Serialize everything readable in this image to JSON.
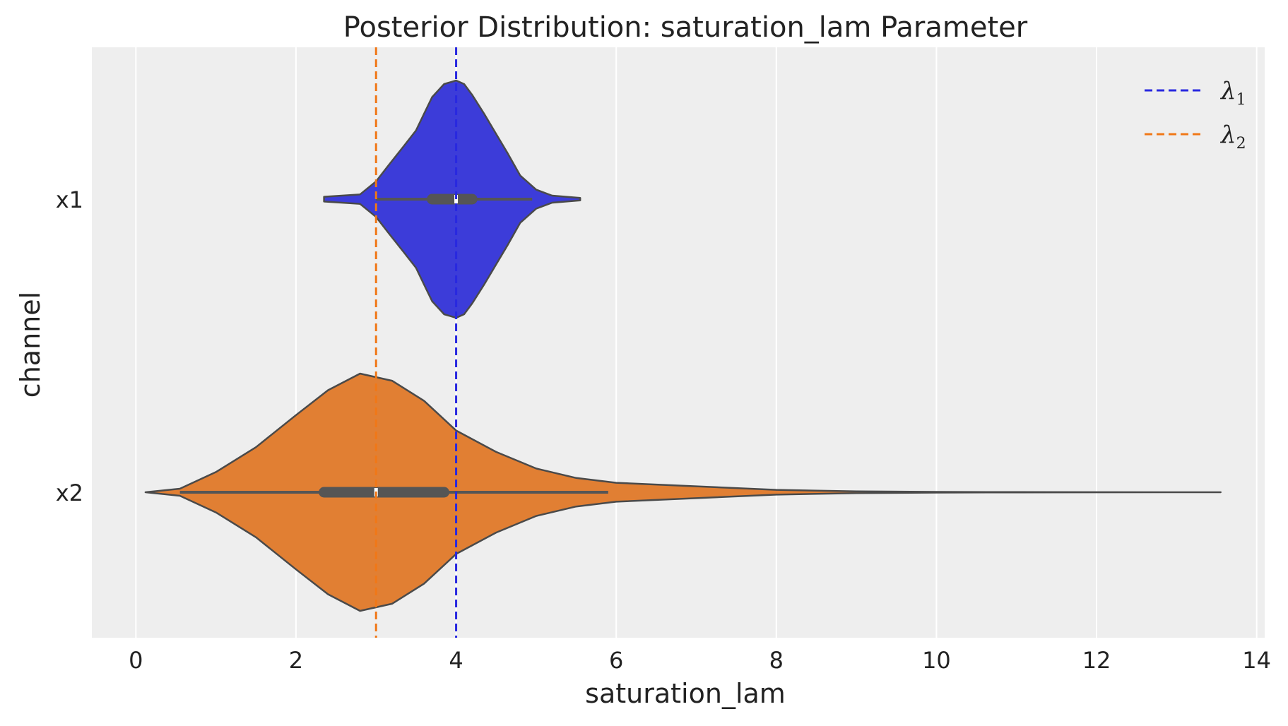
{
  "chart_data": {
    "type": "violin",
    "title": "Posterior Distribution: saturation_lam Parameter",
    "xlabel": "saturation_lam",
    "ylabel": "channel",
    "xlim": [
      -0.55,
      14.1
    ],
    "xticks": [
      0,
      2,
      4,
      6,
      8,
      10,
      12,
      14
    ],
    "grid": true,
    "categories": [
      "x1",
      "x2"
    ],
    "series": [
      {
        "name": "x1",
        "color": "#3c3cd9",
        "box": {
          "q1": 3.7,
          "median": 4.0,
          "q3": 4.2,
          "whisker_low": 3.0,
          "whisker_high": 4.95
        },
        "min": 2.35,
        "max": 5.55,
        "density": [
          [
            2.35,
            0.02
          ],
          [
            2.8,
            0.04
          ],
          [
            3.0,
            0.15
          ],
          [
            3.15,
            0.28
          ],
          [
            3.35,
            0.45
          ],
          [
            3.5,
            0.58
          ],
          [
            3.6,
            0.72
          ],
          [
            3.7,
            0.86
          ],
          [
            3.85,
            0.97
          ],
          [
            4.0,
            1.0
          ],
          [
            4.1,
            0.97
          ],
          [
            4.2,
            0.88
          ],
          [
            4.35,
            0.72
          ],
          [
            4.5,
            0.55
          ],
          [
            4.65,
            0.38
          ],
          [
            4.8,
            0.2
          ],
          [
            5.0,
            0.08
          ],
          [
            5.2,
            0.03
          ],
          [
            5.55,
            0.01
          ]
        ]
      },
      {
        "name": "x2",
        "color": "#e17f33",
        "box": {
          "q1": 2.35,
          "median": 3.0,
          "q3": 3.85,
          "whisker_low": 0.55,
          "whisker_high": 5.9
        },
        "min": 0.12,
        "max": 13.55,
        "density": [
          [
            0.12,
            0.0
          ],
          [
            0.55,
            0.03
          ],
          [
            1.0,
            0.17
          ],
          [
            1.5,
            0.38
          ],
          [
            2.0,
            0.65
          ],
          [
            2.4,
            0.86
          ],
          [
            2.8,
            1.0
          ],
          [
            3.2,
            0.94
          ],
          [
            3.6,
            0.77
          ],
          [
            4.0,
            0.52
          ],
          [
            4.5,
            0.34
          ],
          [
            5.0,
            0.2
          ],
          [
            5.5,
            0.12
          ],
          [
            6.0,
            0.08
          ],
          [
            7.0,
            0.05
          ],
          [
            8.0,
            0.02
          ],
          [
            9.0,
            0.007
          ],
          [
            10.0,
            0.003
          ],
          [
            11.0,
            0.001
          ],
          [
            13.55,
            0.0
          ]
        ]
      }
    ],
    "reference_lines": [
      {
        "label": "λ1",
        "value": 4.0,
        "color": "#2828e0",
        "style": "dashed"
      },
      {
        "label": "λ2",
        "value": 3.0,
        "color": "#f07818",
        "style": "dashed"
      }
    ],
    "legend": {
      "placement": "top-right",
      "entries": [
        {
          "symbol": "λ",
          "sub": "1",
          "color": "#2828e0"
        },
        {
          "symbol": "λ",
          "sub": "2",
          "color": "#f07818"
        }
      ]
    }
  }
}
